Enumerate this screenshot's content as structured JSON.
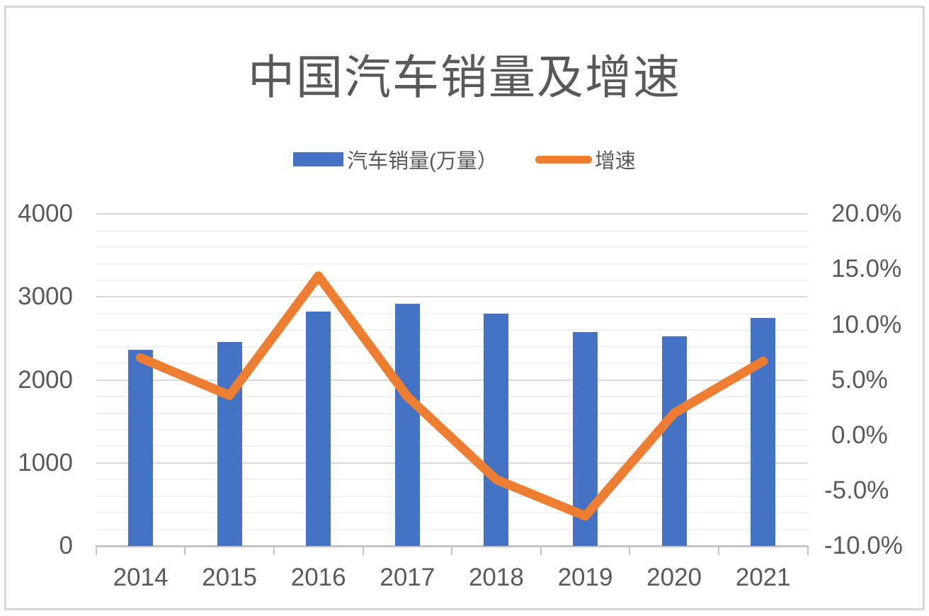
{
  "colors": {
    "bar": "#4472C4",
    "line": "#ED7D31",
    "text": "#595959",
    "grid_major": "#D9D9D9",
    "grid_minor": "#F1F1F1",
    "axis_line": "#C3C3C3",
    "card_border": "#D6D6D6",
    "background": "#FFFFFF"
  },
  "chart_data": {
    "type": "combo-bar-line",
    "title": "中国汽车销量及增速",
    "categories": [
      "2014",
      "2015",
      "2016",
      "2017",
      "2018",
      "2019",
      "2020",
      "2021"
    ],
    "series": [
      {
        "name": "汽车销量(万量）",
        "type": "bar",
        "axis": "left",
        "color": "#4472C4",
        "values": [
          2360,
          2455,
          2825,
          2915,
          2795,
          2575,
          2530,
          2745
        ]
      },
      {
        "name": "增速",
        "type": "line",
        "axis": "right",
        "color": "#ED7D31",
        "values": [
          7.0,
          3.6,
          14.4,
          3.5,
          -4.0,
          -7.3,
          2.0,
          6.7
        ]
      }
    ],
    "left_axis": {
      "min": 0,
      "max": 4000,
      "major_step": 1000,
      "minor_step": 200,
      "tick_labels": [
        "0",
        "1000",
        "2000",
        "3000",
        "4000"
      ]
    },
    "right_axis": {
      "min": -10,
      "max": 20,
      "tick_step": 5,
      "tick_labels": [
        "-10.0%",
        "-5.0%",
        "0.0%",
        "5.0%",
        "10.0%",
        "15.0%",
        "20.0%"
      ]
    },
    "grid": "horizontal-only",
    "legend_position": "top"
  }
}
